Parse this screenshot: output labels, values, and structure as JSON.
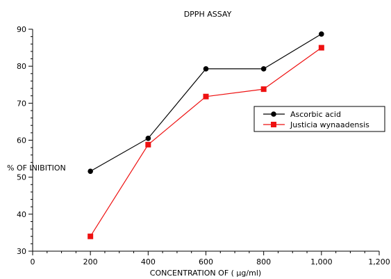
{
  "chart_data": {
    "type": "line",
    "title": "DPPH ASSAY",
    "xlabel": "CONCENTRATION OF ( µg/ml)",
    "ylabel": "% OF INIBITION",
    "xlim": [
      0,
      1200
    ],
    "ylim": [
      30,
      90
    ],
    "x_ticks": [
      0,
      200,
      400,
      600,
      800,
      1000,
      1200
    ],
    "x_tick_labels": [
      "0",
      "200",
      "400",
      "600",
      "800",
      "1,000",
      "1,200"
    ],
    "x_minor_step": 50,
    "y_ticks": [
      30,
      40,
      50,
      60,
      70,
      80,
      90
    ],
    "y_tick_labels": [
      "30",
      "40",
      "50",
      "60",
      "70",
      "80",
      "90"
    ],
    "y_minor_step": 2,
    "grid": false,
    "legend_position": "right",
    "series": [
      {
        "name": "Ascorbic acid",
        "color": "#000000",
        "marker": "circle",
        "x": [
          200,
          400,
          600,
          800,
          1000
        ],
        "y": [
          51.6,
          60.5,
          79.3,
          79.3,
          88.7
        ]
      },
      {
        "name": "Justicia wynaadensis",
        "color": "#ee1111",
        "marker": "square",
        "x": [
          200,
          400,
          600,
          800,
          1000
        ],
        "y": [
          34.0,
          58.8,
          71.8,
          73.8,
          85.0
        ]
      }
    ]
  }
}
